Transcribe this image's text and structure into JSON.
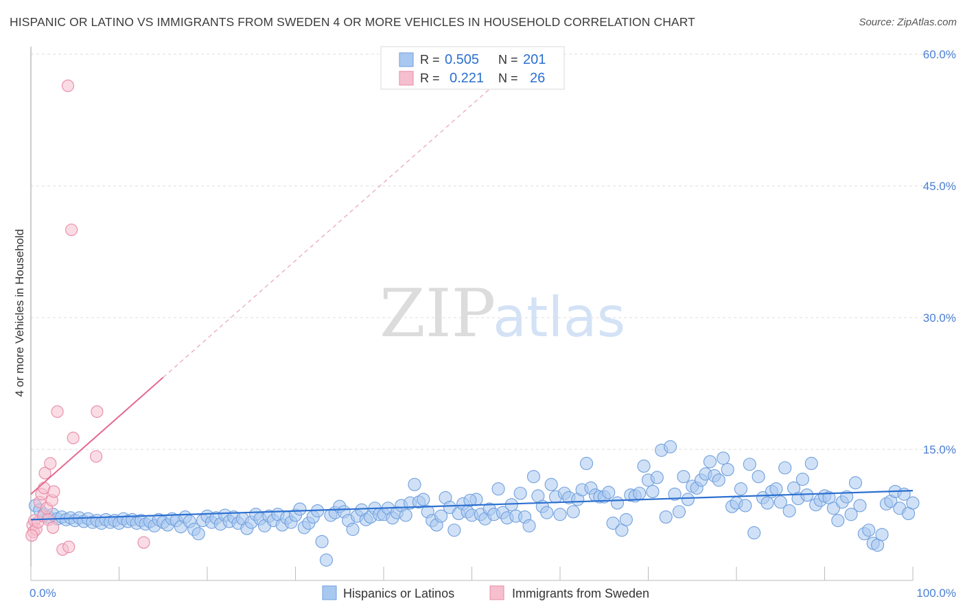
{
  "title": "HISPANIC OR LATINO VS IMMIGRANTS FROM SWEDEN 4 OR MORE VEHICLES IN HOUSEHOLD CORRELATION CHART",
  "source": "Source: ZipAtlas.com",
  "watermark": {
    "zip": "ZIP",
    "atlas": "atlas"
  },
  "colors": {
    "blue_fill": "#a9c8f0",
    "blue_stroke": "#6f9fdc",
    "blue_line": "#2b6fd0",
    "pink_fill": "#f6bfd0",
    "pink_stroke": "#e88aa6",
    "pink_line": "#e4678f",
    "axis_text": "#4a7fd4",
    "grid": "#dddddd"
  },
  "stats_legend": {
    "rows": [
      {
        "r_label": "R =",
        "r_value": "0.505",
        "n_label": "N =",
        "n_value": "201",
        "series": "blue"
      },
      {
        "r_label": "R =",
        "r_value": "0.221",
        "n_label": "N =",
        "n_value": "26",
        "series": "pink"
      }
    ]
  },
  "bottom_legend": [
    "Hispanics or Latinos",
    "Immigrants from Sweden"
  ],
  "chart_data": {
    "type": "scatter",
    "xlabel": "",
    "ylabel": "4 or more Vehicles in Household",
    "xlim": [
      0,
      100
    ],
    "ylim": [
      0,
      62
    ],
    "x_tick_labels": [
      "0.0%",
      "100.0%"
    ],
    "y_ticks": [
      15,
      30,
      45,
      60
    ],
    "y_tick_labels": [
      "15.0%",
      "30.0%",
      "45.0%",
      "60.0%"
    ],
    "grid": "horizontal dashed",
    "legend": "top-center and bottom",
    "series": [
      {
        "name": "Hispanics or Latinos",
        "color": "blue",
        "trend": {
          "x": [
            0,
            100
          ],
          "y": [
            7.0,
            10.3
          ]
        },
        "points": [
          [
            0.5,
            8.6
          ],
          [
            1.0,
            8.1
          ],
          [
            1.5,
            7.6
          ],
          [
            2.0,
            7.3
          ],
          [
            2.5,
            7.6
          ],
          [
            3.0,
            7.1
          ],
          [
            3.5,
            7.3
          ],
          [
            4.0,
            7.0
          ],
          [
            4.5,
            7.2
          ],
          [
            5.0,
            6.9
          ],
          [
            5.5,
            7.2
          ],
          [
            6.0,
            6.8
          ],
          [
            6.5,
            7.1
          ],
          [
            7.0,
            6.7
          ],
          [
            7.5,
            6.9
          ],
          [
            8.0,
            6.6
          ],
          [
            8.5,
            7.0
          ],
          [
            9.0,
            6.7
          ],
          [
            9.5,
            6.9
          ],
          [
            10.0,
            6.6
          ],
          [
            10.5,
            7.1
          ],
          [
            11.0,
            6.8
          ],
          [
            11.5,
            7.0
          ],
          [
            12.0,
            6.6
          ],
          [
            12.5,
            6.9
          ],
          [
            13.0,
            6.5
          ],
          [
            13.5,
            6.8
          ],
          [
            14.0,
            6.3
          ],
          [
            14.5,
            7.0
          ],
          [
            15.0,
            6.7
          ],
          [
            15.5,
            6.4
          ],
          [
            16.0,
            7.1
          ],
          [
            16.5,
            6.9
          ],
          [
            17.0,
            6.2
          ],
          [
            17.5,
            7.3
          ],
          [
            18.0,
            6.8
          ],
          [
            18.5,
            5.9
          ],
          [
            19.0,
            5.4
          ],
          [
            19.5,
            6.9
          ],
          [
            20.0,
            7.4
          ],
          [
            20.5,
            6.7
          ],
          [
            21.0,
            7.2
          ],
          [
            21.5,
            6.5
          ],
          [
            22.0,
            7.5
          ],
          [
            22.5,
            6.8
          ],
          [
            23.0,
            7.3
          ],
          [
            23.5,
            6.6
          ],
          [
            24.0,
            7.1
          ],
          [
            24.5,
            6.0
          ],
          [
            25.0,
            6.7
          ],
          [
            25.5,
            7.6
          ],
          [
            26.0,
            7.1
          ],
          [
            26.5,
            6.3
          ],
          [
            27.0,
            7.4
          ],
          [
            27.5,
            6.9
          ],
          [
            28.0,
            7.6
          ],
          [
            28.5,
            6.4
          ],
          [
            29.0,
            7.2
          ],
          [
            29.5,
            6.7
          ],
          [
            30.0,
            7.5
          ],
          [
            30.5,
            8.2
          ],
          [
            31.0,
            6.1
          ],
          [
            31.5,
            6.6
          ],
          [
            32.0,
            7.3
          ],
          [
            32.5,
            8.0
          ],
          [
            33.0,
            4.5
          ],
          [
            33.5,
            2.4
          ],
          [
            34.0,
            7.5
          ],
          [
            34.5,
            7.8
          ],
          [
            35.0,
            8.5
          ],
          [
            35.5,
            7.9
          ],
          [
            36.0,
            6.9
          ],
          [
            36.5,
            5.9
          ],
          [
            37.0,
            7.4
          ],
          [
            37.5,
            8.1
          ],
          [
            38.0,
            7.0
          ],
          [
            38.5,
            7.3
          ],
          [
            39.0,
            8.3
          ],
          [
            39.5,
            7.6
          ],
          [
            40.0,
            7.6
          ],
          [
            40.5,
            8.3
          ],
          [
            41.0,
            7.2
          ],
          [
            41.5,
            7.8
          ],
          [
            42.0,
            8.6
          ],
          [
            42.5,
            7.5
          ],
          [
            43.0,
            8.9
          ],
          [
            43.5,
            11.0
          ],
          [
            44.0,
            9.0
          ],
          [
            44.5,
            9.3
          ],
          [
            45.0,
            7.9
          ],
          [
            45.5,
            6.9
          ],
          [
            46.0,
            6.4
          ],
          [
            46.5,
            7.4
          ],
          [
            47.0,
            9.5
          ],
          [
            47.5,
            8.4
          ],
          [
            48.0,
            5.8
          ],
          [
            48.5,
            7.7
          ],
          [
            49.0,
            8.8
          ],
          [
            49.5,
            7.9
          ],
          [
            50.0,
            7.5
          ],
          [
            50.5,
            9.3
          ],
          [
            51.0,
            7.6
          ],
          [
            51.5,
            7.1
          ],
          [
            52.0,
            8.2
          ],
          [
            52.5,
            7.6
          ],
          [
            53.0,
            10.5
          ],
          [
            53.5,
            7.8
          ],
          [
            54.0,
            7.2
          ],
          [
            54.5,
            8.7
          ],
          [
            55.0,
            7.4
          ],
          [
            55.5,
            10.0
          ],
          [
            56.0,
            7.3
          ],
          [
            56.5,
            6.3
          ],
          [
            57.0,
            11.9
          ],
          [
            57.5,
            9.7
          ],
          [
            58.0,
            8.5
          ],
          [
            58.5,
            7.8
          ],
          [
            59.0,
            11.0
          ],
          [
            59.5,
            9.6
          ],
          [
            60.0,
            7.6
          ],
          [
            60.5,
            10.0
          ],
          [
            61.0,
            9.5
          ],
          [
            61.5,
            7.9
          ],
          [
            62.0,
            9.3
          ],
          [
            62.5,
            10.4
          ],
          [
            63.0,
            13.4
          ],
          [
            63.5,
            10.6
          ],
          [
            64.0,
            9.8
          ],
          [
            64.5,
            9.6
          ],
          [
            65.0,
            9.6
          ],
          [
            65.5,
            10.1
          ],
          [
            66.0,
            6.6
          ],
          [
            66.5,
            8.9
          ],
          [
            67.0,
            5.8
          ],
          [
            67.5,
            7.0
          ],
          [
            68.0,
            9.8
          ],
          [
            68.5,
            9.7
          ],
          [
            69.0,
            10.0
          ],
          [
            69.5,
            13.1
          ],
          [
            70.0,
            11.5
          ],
          [
            70.5,
            10.2
          ],
          [
            71.0,
            11.8
          ],
          [
            71.5,
            14.9
          ],
          [
            72.0,
            7.3
          ],
          [
            72.5,
            15.3
          ],
          [
            73.0,
            9.9
          ],
          [
            73.5,
            7.9
          ],
          [
            74.0,
            11.9
          ],
          [
            74.5,
            9.3
          ],
          [
            75.0,
            10.8
          ],
          [
            75.5,
            10.6
          ],
          [
            76.0,
            11.5
          ],
          [
            76.5,
            12.2
          ],
          [
            77.0,
            13.6
          ],
          [
            77.5,
            12.0
          ],
          [
            78.0,
            11.5
          ],
          [
            78.5,
            14.0
          ],
          [
            79.0,
            12.7
          ],
          [
            79.5,
            8.5
          ],
          [
            80.0,
            8.9
          ],
          [
            80.5,
            10.5
          ],
          [
            81.0,
            8.6
          ],
          [
            81.5,
            13.3
          ],
          [
            82.0,
            5.5
          ],
          [
            82.5,
            11.9
          ],
          [
            83.0,
            9.5
          ],
          [
            83.5,
            8.9
          ],
          [
            84.0,
            10.2
          ],
          [
            84.5,
            10.5
          ],
          [
            85.0,
            9.0
          ],
          [
            85.5,
            12.9
          ],
          [
            86.0,
            8.0
          ],
          [
            86.5,
            10.6
          ],
          [
            87.0,
            9.4
          ],
          [
            87.5,
            11.6
          ],
          [
            88.0,
            9.8
          ],
          [
            88.5,
            13.4
          ],
          [
            89.0,
            8.7
          ],
          [
            89.5,
            9.2
          ],
          [
            90.0,
            9.7
          ],
          [
            90.5,
            9.5
          ],
          [
            91.0,
            8.3
          ],
          [
            91.5,
            6.9
          ],
          [
            92.0,
            9.0
          ],
          [
            92.5,
            9.6
          ],
          [
            93.0,
            7.6
          ],
          [
            93.5,
            11.2
          ],
          [
            94.0,
            8.6
          ],
          [
            94.5,
            5.4
          ],
          [
            95.0,
            5.8
          ],
          [
            95.5,
            4.3
          ],
          [
            96.0,
            4.1
          ],
          [
            96.5,
            5.3
          ],
          [
            97.0,
            8.8
          ],
          [
            97.5,
            9.1
          ],
          [
            98.0,
            10.2
          ],
          [
            98.5,
            8.3
          ],
          [
            99.0,
            9.9
          ],
          [
            99.5,
            7.7
          ],
          [
            100.0,
            8.9
          ],
          [
            49.8,
            9.2
          ]
        ]
      },
      {
        "name": "Immigrants from Sweden",
        "color": "pink",
        "trend": {
          "x": [
            0,
            15
          ],
          "y": [
            9.9,
            23.2
          ]
        },
        "trend_dashed": {
          "x": [
            15,
            100
          ],
          "y": [
            23.2,
            98.6
          ]
        },
        "points": [
          [
            0.2,
            6.4
          ],
          [
            0.3,
            5.6
          ],
          [
            0.4,
            6.9
          ],
          [
            0.6,
            5.9
          ],
          [
            0.8,
            6.7
          ],
          [
            1.0,
            9.0
          ],
          [
            1.2,
            9.9
          ],
          [
            1.4,
            7.4
          ],
          [
            1.5,
            10.6
          ],
          [
            1.6,
            12.3
          ],
          [
            1.8,
            8.3
          ],
          [
            2.0,
            7.0
          ],
          [
            2.2,
            13.4
          ],
          [
            2.4,
            9.2
          ],
          [
            2.5,
            6.1
          ],
          [
            2.6,
            10.2
          ],
          [
            3.0,
            19.3
          ],
          [
            3.6,
            3.6
          ],
          [
            4.2,
            56.4
          ],
          [
            4.3,
            3.9
          ],
          [
            4.6,
            40.0
          ],
          [
            4.8,
            16.3
          ],
          [
            7.4,
            14.2
          ],
          [
            7.5,
            19.3
          ],
          [
            12.8,
            4.4
          ],
          [
            0.1,
            5.2
          ]
        ]
      }
    ]
  }
}
